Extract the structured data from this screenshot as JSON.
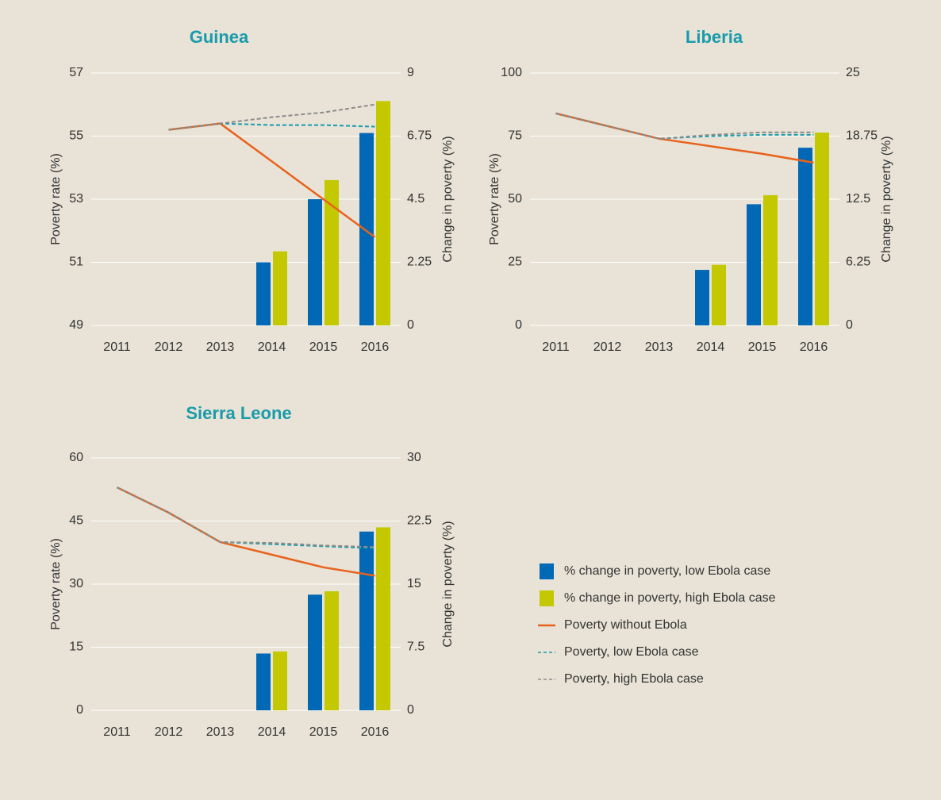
{
  "chart_data": [
    {
      "type": "bar_line",
      "title": "Guinea",
      "categories": [
        "2011",
        "2012",
        "2013",
        "2014",
        "2015",
        "2016"
      ],
      "ylabel": "Poverty rate (%)",
      "y2label": "Change in poverty (%)",
      "ylim": [
        49,
        57
      ],
      "yticks": [
        49,
        51,
        53,
        55,
        57
      ],
      "y2lim": [
        0,
        9
      ],
      "y2ticks": [
        0,
        2.25,
        4.5,
        6.75,
        9
      ],
      "series": [
        {
          "type": "bar",
          "axis": "y2",
          "values": [
            null,
            null,
            null,
            2.25,
            4.5,
            6.86
          ]
        },
        {
          "type": "bar",
          "axis": "y2",
          "values": [
            null,
            null,
            null,
            2.64,
            5.18,
            8.0
          ]
        },
        {
          "type": "line",
          "axis": "y",
          "values": [
            null,
            55.2,
            55.4,
            54.2,
            53.0,
            51.8
          ]
        },
        {
          "type": "line",
          "axis": "y",
          "values": [
            null,
            55.2,
            55.4,
            55.35,
            55.35,
            55.3
          ]
        },
        {
          "type": "line",
          "axis": "y",
          "values": [
            null,
            55.2,
            55.4,
            55.6,
            55.75,
            56.0
          ]
        }
      ]
    },
    {
      "type": "bar_line",
      "title": "Liberia",
      "categories": [
        "2011",
        "2012",
        "2013",
        "2014",
        "2015",
        "2016"
      ],
      "ylabel": "Poverty rate (%)",
      "y2label": "Change in poverty (%)",
      "ylim": [
        0,
        100
      ],
      "yticks": [
        0,
        25,
        50,
        75,
        100
      ],
      "y2lim": [
        0,
        25
      ],
      "y2ticks": [
        0,
        6.25,
        12.5,
        18.75,
        25
      ],
      "series": [
        {
          "type": "bar",
          "axis": "y2",
          "values": [
            null,
            null,
            null,
            5.5,
            12.0,
            17.6
          ]
        },
        {
          "type": "bar",
          "axis": "y2",
          "values": [
            null,
            null,
            null,
            6.0,
            12.9,
            19.1
          ]
        },
        {
          "type": "line",
          "axis": "y",
          "values": [
            84,
            79,
            74,
            71,
            68,
            64.5
          ]
        },
        {
          "type": "line",
          "axis": "y",
          "values": [
            84,
            79,
            74,
            75,
            75.5,
            75.5
          ]
        },
        {
          "type": "line",
          "axis": "y",
          "values": [
            84,
            79,
            74,
            75.5,
            76.5,
            76.5
          ]
        }
      ]
    },
    {
      "type": "bar_line",
      "title": "Sierra Leone",
      "categories": [
        "2011",
        "2012",
        "2013",
        "2014",
        "2015",
        "2016"
      ],
      "ylabel": "Poverty rate (%)",
      "y2label": "Change in poverty (%)",
      "ylim": [
        0,
        60
      ],
      "yticks": [
        0,
        15,
        30,
        45,
        60
      ],
      "y2lim": [
        0,
        30
      ],
      "y2ticks": [
        0,
        7.5,
        15,
        22.5,
        30
      ],
      "series": [
        {
          "type": "bar",
          "axis": "y2",
          "values": [
            null,
            null,
            null,
            6.75,
            13.75,
            21.25
          ]
        },
        {
          "type": "bar",
          "axis": "y2",
          "values": [
            null,
            null,
            null,
            7.0,
            14.15,
            21.75
          ]
        },
        {
          "type": "line",
          "axis": "y",
          "values": [
            53,
            47,
            40,
            37,
            34,
            32
          ]
        },
        {
          "type": "line",
          "axis": "y",
          "values": [
            53,
            47,
            40,
            39.5,
            39,
            38.5
          ]
        },
        {
          "type": "line",
          "axis": "y",
          "values": [
            53,
            47,
            40,
            39.8,
            39.2,
            38.8
          ]
        }
      ]
    }
  ],
  "legend": [
    {
      "name": "% change in poverty, low Ebola case",
      "color": "#0068b4",
      "style": "bar"
    },
    {
      "name": "% change in poverty, high Ebola case",
      "color": "#c3c800",
      "style": "bar"
    },
    {
      "name": "Poverty without Ebola",
      "color": "#e8621c",
      "style": "solid"
    },
    {
      "name": "Poverty, low Ebola case",
      "color": "#1a9bab",
      "style": "dashed"
    },
    {
      "name": "Poverty, high Ebola case",
      "color": "#8c8c8c",
      "style": "dashed"
    }
  ]
}
